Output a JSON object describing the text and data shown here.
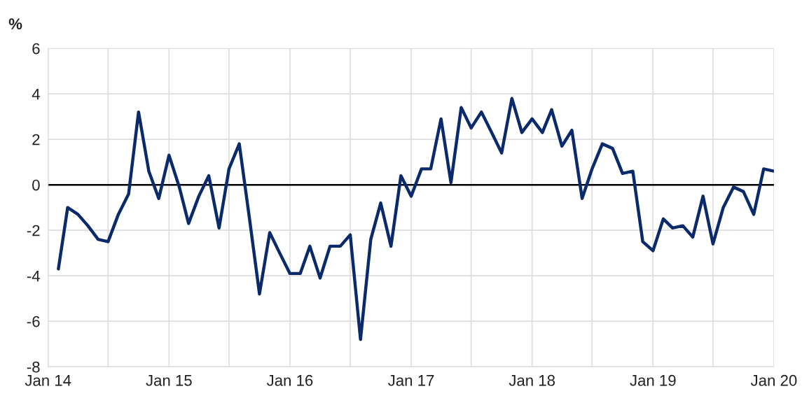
{
  "chart_data": {
    "type": "line",
    "ylabel": "%",
    "x": [
      "2014-02",
      "2014-03",
      "2014-04",
      "2014-05",
      "2014-06",
      "2014-07",
      "2014-08",
      "2014-09",
      "2014-10",
      "2014-11",
      "2014-12",
      "2015-01",
      "2015-02",
      "2015-03",
      "2015-04",
      "2015-05",
      "2015-06",
      "2015-07",
      "2015-08",
      "2015-09",
      "2015-10",
      "2015-11",
      "2015-12",
      "2016-01",
      "2016-02",
      "2016-03",
      "2016-04",
      "2016-05",
      "2016-06",
      "2016-07",
      "2016-08",
      "2016-09",
      "2016-10",
      "2016-11",
      "2016-12",
      "2017-01",
      "2017-02",
      "2017-03",
      "2017-04",
      "2017-05",
      "2017-06",
      "2017-07",
      "2017-08",
      "2017-09",
      "2017-10",
      "2017-11",
      "2017-12",
      "2018-01",
      "2018-02",
      "2018-03",
      "2018-04",
      "2018-05",
      "2018-06",
      "2018-07",
      "2018-08",
      "2018-09",
      "2018-10",
      "2018-11",
      "2018-12",
      "2019-01",
      "2019-02",
      "2019-03",
      "2019-04",
      "2019-05",
      "2019-06",
      "2019-07",
      "2019-08",
      "2019-09",
      "2019-10",
      "2019-11",
      "2019-12",
      "2020-01"
    ],
    "series": [
      {
        "color": "#0b2a6b",
        "values": [
          -3.7,
          -1.0,
          -1.3,
          -1.8,
          -2.4,
          -2.5,
          -1.3,
          -0.4,
          3.2,
          0.6,
          -0.6,
          1.3,
          -0.1,
          -1.7,
          -0.5,
          0.4,
          -1.9,
          0.7,
          1.8,
          -1.5,
          -4.8,
          -2.1,
          -3.0,
          -3.9,
          -3.9,
          -2.7,
          -4.1,
          -2.7,
          -2.7,
          -2.2,
          -6.8,
          -2.4,
          -0.8,
          -2.7,
          0.4,
          -0.5,
          0.7,
          0.7,
          2.9,
          0.1,
          3.4,
          2.5,
          3.2,
          2.3,
          1.4,
          3.8,
          2.3,
          2.9,
          2.3,
          3.3,
          1.7,
          2.4,
          -0.6,
          0.7,
          1.8,
          1.6,
          0.5,
          0.6,
          -2.5,
          -2.9,
          -1.5,
          -1.9,
          -1.8,
          -2.3,
          -0.5,
          -2.6,
          -1.0,
          -0.1,
          -0.3,
          -1.3,
          0.7,
          0.6
        ]
      }
    ],
    "xlim": [
      "2014-01",
      "2020-01"
    ],
    "xticks": [
      {
        "value": "2014-01",
        "label": "Jan 14"
      },
      {
        "value": "2014-07",
        "label": null
      },
      {
        "value": "2015-01",
        "label": "Jan 15"
      },
      {
        "value": "2015-07",
        "label": null
      },
      {
        "value": "2016-01",
        "label": "Jan 16"
      },
      {
        "value": "2016-07",
        "label": null
      },
      {
        "value": "2017-01",
        "label": "Jan 17"
      },
      {
        "value": "2017-07",
        "label": null
      },
      {
        "value": "2018-01",
        "label": "Jan 18"
      },
      {
        "value": "2018-07",
        "label": null
      },
      {
        "value": "2019-01",
        "label": "Jan 19"
      },
      {
        "value": "2019-07",
        "label": null
      },
      {
        "value": "2020-01",
        "label": "Jan 20"
      }
    ],
    "ylim": [
      -8,
      6
    ],
    "yticks": [
      -8,
      -6,
      -4,
      -2,
      0,
      2,
      4,
      6
    ],
    "ref_lines": [
      {
        "axis": "y",
        "value": 0,
        "color": "#000000"
      }
    ],
    "grid": true,
    "marker": "none",
    "line_style": "solid"
  }
}
